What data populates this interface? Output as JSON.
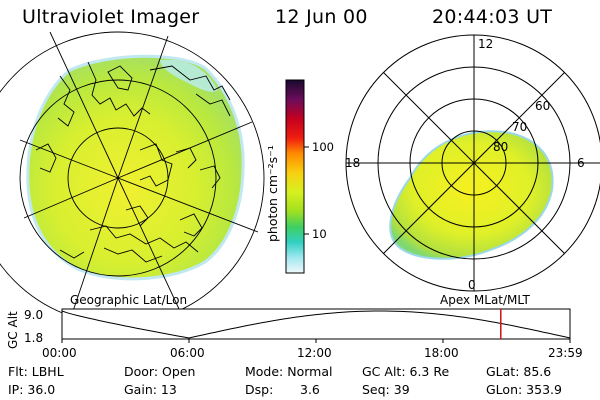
{
  "header": {
    "instrument": "Ultraviolet Imager",
    "date": "12 Jun 00",
    "time": "20:44:03 UT"
  },
  "colorbar": {
    "unit_label": "photon cm⁻²s⁻¹",
    "ticks": [
      {
        "label": "100",
        "value": 100
      },
      {
        "label": "10",
        "value": 10
      }
    ],
    "colors": [
      "#1a0a2e",
      "#6a0d5a",
      "#c40020",
      "#f01c10",
      "#ff8a00",
      "#f8d010",
      "#d8f020",
      "#a0e020",
      "#40d060",
      "#30d0c0",
      "#a0e8f0",
      "#f0f8fa"
    ]
  },
  "left_panel": {
    "caption": "Geographic Lat/Lon"
  },
  "right_panel": {
    "caption": "Apex MLat/MLT",
    "mlt_labels": {
      "top": "12",
      "left": "18",
      "right": "6",
      "bottom": "0"
    },
    "lat_labels": [
      "60",
      "70",
      "80"
    ]
  },
  "timeline": {
    "ylabel": "GC Alt",
    "y_ticks": [
      "9.0",
      "1.8"
    ],
    "x_ticks": [
      "00:00",
      "06:00",
      "12:00",
      "18:00",
      "23:59"
    ],
    "current_marker_hours": 20.73,
    "marker_color": "#d01010"
  },
  "info": {
    "row1": {
      "filter": "Flt: LBHL",
      "door": "Door: Open",
      "mode": "Mode: Normal",
      "gc_alt": "GC Alt: 6.3 Re",
      "glat": "GLat:  85.6"
    },
    "row2": {
      "ip": "IP: 36.0",
      "gain": "Gain: 13",
      "dsp_label": "Dsp:",
      "dsp_value": "3.6",
      "seq": "Seq: 39",
      "glon": "GLon: 353.9"
    }
  }
}
